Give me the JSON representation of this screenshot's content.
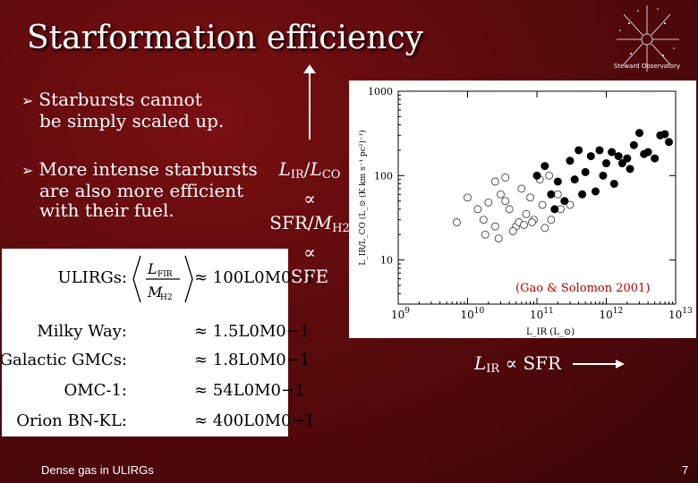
{
  "slide": {
    "title": "Starformation efficiency",
    "logo_text": "Steward Observatory",
    "bullets": [
      {
        "line1": "Starbursts cannot",
        "line2": "be simply scaled up."
      },
      {
        "line1": "More intense starbursts",
        "line2": "are also more efficient",
        "line3": "with their fuel."
      }
    ],
    "ratio": {
      "line1_a": "L",
      "line1_sub_a": "IR",
      "line1_slash": "/",
      "line1_b": "L",
      "line1_sub_b": "CO",
      "prop1": "∝",
      "line2": "SFR/",
      "line2_m": "M",
      "line2_sub": "H2",
      "prop2": "∝",
      "line3": "SFE"
    },
    "lir_text_l": "L",
    "lir_text_sub": "IR",
    "lir_text_rest": " ∝ SFR",
    "footer": "Dense gas in ULIRGs",
    "page_number": "7"
  },
  "table": {
    "ulirg_label": "ULIRGs:",
    "ulirg_frac_top": "L",
    "ulirg_frac_top_sub": "FIR",
    "ulirg_frac_bot": "M",
    "ulirg_frac_bot_sub": "H2",
    "ulirg_value": "≈ 100L0M0−1",
    "rows": [
      {
        "label": "Milky Way:",
        "value": "≈ 1.5L0M0−1"
      },
      {
        "label": "Galactic GMCs:",
        "value": "≈ 1.8L0M0−1"
      },
      {
        "label": "OMC-1:",
        "value": "≈ 54L0M0−1"
      },
      {
        "label": "Orion BN-KL:",
        "value": "≈ 400L0M0−1"
      }
    ]
  },
  "chart_data": {
    "type": "scatter",
    "annotation": "(Gao & Solomon 2001)",
    "xlabel": "L_IR (L_⊙)",
    "ylabel": "L_IR/L_CO (L_⊙ (K km s⁻¹ pc²)⁻¹)",
    "xscale": "log",
    "yscale": "log",
    "xlim": [
      1000000000.0,
      10000000000000.0
    ],
    "ylim": [
      3,
      1000
    ],
    "x_ticks": [
      "10^9",
      "10^10",
      "10^11",
      "10^12",
      "10^13"
    ],
    "y_ticks": [
      "10",
      "100",
      "1000"
    ],
    "series": [
      {
        "marker": "open-circle",
        "x": [
          7000000000.0,
          10000000000.0,
          14000000000.0,
          17000000000.0,
          20000000000.0,
          25000000000.0,
          30000000000.0,
          25000000000.0,
          35000000000.0,
          40000000000.0,
          50000000000.0,
          55000000000.0,
          60000000000.0,
          70000000000.0,
          80000000000.0,
          90000000000.0,
          110000000000.0,
          120000000000.0,
          150000000000.0,
          160000000000.0,
          200000000000.0,
          220000000000.0,
          18000000000.0,
          28000000000.0,
          45000000000.0,
          65000000000.0,
          85000000000.0,
          130000000000.0,
          300000000000.0,
          35000000000.0
        ],
        "y": [
          28,
          55,
          40,
          30,
          48,
          85,
          60,
          25,
          95,
          40,
          25,
          28,
          70,
          35,
          55,
          30,
          90,
          45,
          100,
          30,
          60,
          40,
          20,
          18,
          22,
          26,
          28,
          24,
          45,
          50
        ]
      },
      {
        "marker": "filled-circle",
        "x": [
          100000000000.0,
          130000000000.0,
          160000000000.0,
          200000000000.0,
          250000000000.0,
          300000000000.0,
          350000000000.0,
          400000000000.0,
          500000000000.0,
          600000000000.0,
          700000000000.0,
          800000000000.0,
          1000000000000.0,
          1200000000000.0,
          1500000000000.0,
          2000000000000.0,
          2500000000000.0,
          3000000000000.0,
          4000000000000.0,
          5000000000000.0,
          6000000000000.0,
          8000000000000.0,
          1300000000000.0,
          2200000000000.0,
          3500000000000.0,
          180000000000.0,
          450000000000.0,
          900000000000.0,
          1700000000000.0,
          7000000000000.0
        ],
        "y": [
          100,
          130,
          60,
          85,
          50,
          150,
          90,
          200,
          110,
          170,
          65,
          200,
          140,
          190,
          170,
          160,
          230,
          320,
          190,
          160,
          300,
          250,
          80,
          120,
          180,
          40,
          60,
          100,
          140,
          310
        ]
      }
    ]
  },
  "colors": {
    "background": "#5a0a0c",
    "annotation": "#b00000"
  }
}
